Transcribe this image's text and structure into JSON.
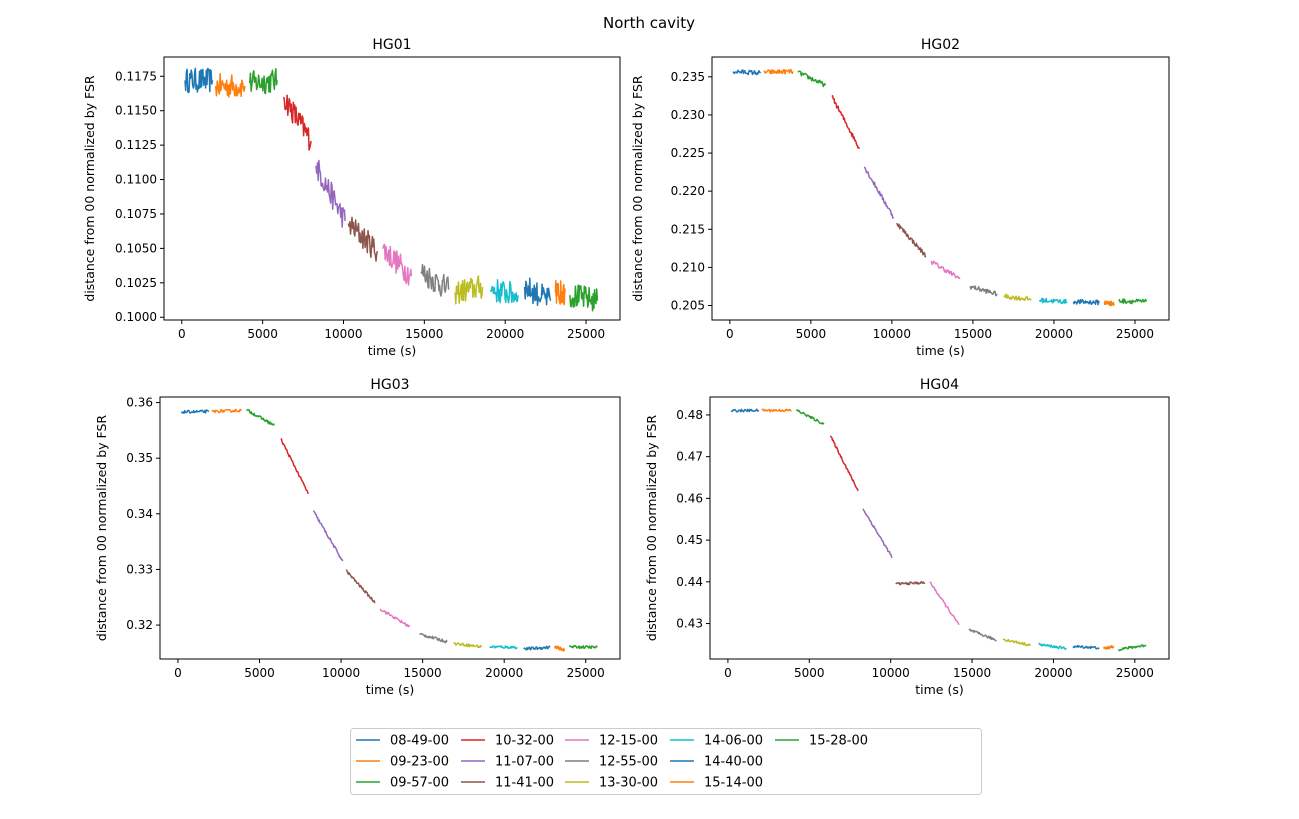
{
  "chart_data": {
    "type": "line",
    "suptitle": "North cavity",
    "legend": {
      "placement": "bottom-center",
      "columns": 5,
      "entries": [
        {
          "label": "08-49-00",
          "color": "#1f77b4"
        },
        {
          "label": "09-23-00",
          "color": "#ff7f0e"
        },
        {
          "label": "09-57-00",
          "color": "#2ca02c"
        },
        {
          "label": "10-32-00",
          "color": "#d62728"
        },
        {
          "label": "11-07-00",
          "color": "#9467bd"
        },
        {
          "label": "11-41-00",
          "color": "#8c564b"
        },
        {
          "label": "12-15-00",
          "color": "#e377c2"
        },
        {
          "label": "12-55-00",
          "color": "#7f7f7f"
        },
        {
          "label": "13-30-00",
          "color": "#bcbd22"
        },
        {
          "label": "14-06-00",
          "color": "#17becf"
        },
        {
          "label": "14-40-00",
          "color": "#1f77b4"
        },
        {
          "label": "15-14-00",
          "color": "#ff7f0e"
        },
        {
          "label": "15-28-00",
          "color": "#2ca02c"
        }
      ]
    },
    "segments_time_ranges": [
      [
        200,
        1900
      ],
      [
        2100,
        3900
      ],
      [
        4200,
        5900
      ],
      [
        6300,
        8000
      ],
      [
        8300,
        10100
      ],
      [
        10300,
        12100
      ],
      [
        12400,
        14200
      ],
      [
        14800,
        16500
      ],
      [
        16900,
        18600
      ],
      [
        19100,
        20800
      ],
      [
        21200,
        22800
      ],
      [
        23100,
        23700
      ],
      [
        24000,
        25700
      ]
    ],
    "subplots": [
      {
        "title": "HG01",
        "xlabel": "time (s)",
        "ylabel": "distance from 00 normalized by FSR",
        "xlim": [
          -1100,
          27100
        ],
        "ylim": [
          0.0998,
          0.1189
        ],
        "xticks": [
          "0",
          "5000",
          "10000",
          "15000",
          "20000",
          "25000"
        ],
        "yticks": [
          "0.1000",
          "0.1025",
          "0.1050",
          "0.1075",
          "0.1100",
          "0.1125",
          "0.1150",
          "0.1175"
        ],
        "noise": 0.0009,
        "segments": [
          {
            "start": 0.1172,
            "end": 0.1172
          },
          {
            "start": 0.1168,
            "end": 0.1168
          },
          {
            "start": 0.117,
            "end": 0.1172
          },
          {
            "start": 0.116,
            "end": 0.1128
          },
          {
            "start": 0.111,
            "end": 0.107
          },
          {
            "start": 0.1068,
            "end": 0.1048
          },
          {
            "start": 0.105,
            "end": 0.103
          },
          {
            "start": 0.1033,
            "end": 0.102
          },
          {
            "start": 0.1018,
            "end": 0.1022
          },
          {
            "start": 0.102,
            "end": 0.1016
          },
          {
            "start": 0.1022,
            "end": 0.1012
          },
          {
            "start": 0.1018,
            "end": 0.1018
          },
          {
            "start": 0.1016,
            "end": 0.1012
          }
        ]
      },
      {
        "title": "HG02",
        "xlabel": "time (s)",
        "ylabel": "distance from 00 normalized by FSR",
        "xlim": [
          -1100,
          27100
        ],
        "ylim": [
          0.2031,
          0.2376
        ],
        "xticks": [
          "0",
          "5000",
          "10000",
          "15000",
          "20000",
          "25000"
        ],
        "yticks": [
          "0.205",
          "0.210",
          "0.215",
          "0.220",
          "0.225",
          "0.230",
          "0.235"
        ],
        "noise": 0.0003,
        "segments": [
          {
            "start": 0.2357,
            "end": 0.2355
          },
          {
            "start": 0.2356,
            "end": 0.2357
          },
          {
            "start": 0.2356,
            "end": 0.2339
          },
          {
            "start": 0.2324,
            "end": 0.2256
          },
          {
            "start": 0.2232,
            "end": 0.2166
          },
          {
            "start": 0.2158,
            "end": 0.2115
          },
          {
            "start": 0.2108,
            "end": 0.2085
          },
          {
            "start": 0.2075,
            "end": 0.2065
          },
          {
            "start": 0.2062,
            "end": 0.2058
          },
          {
            "start": 0.2057,
            "end": 0.2055
          },
          {
            "start": 0.2055,
            "end": 0.2054
          },
          {
            "start": 0.2054,
            "end": 0.2052
          },
          {
            "start": 0.2056,
            "end": 0.2055
          }
        ]
      },
      {
        "title": "HG03",
        "xlabel": "time (s)",
        "ylabel": "distance from 00 normalized by FSR",
        "xlim": [
          -1100,
          27100
        ],
        "ylim": [
          0.3139,
          0.361
        ],
        "xticks": [
          "0",
          "5000",
          "10000",
          "15000",
          "20000",
          "25000"
        ],
        "yticks": [
          "0.32",
          "0.33",
          "0.34",
          "0.35",
          "0.36"
        ],
        "noise": 0.00025,
        "segments": [
          {
            "start": 0.3583,
            "end": 0.3584
          },
          {
            "start": 0.3584,
            "end": 0.3586
          },
          {
            "start": 0.3587,
            "end": 0.3559
          },
          {
            "start": 0.3535,
            "end": 0.3436
          },
          {
            "start": 0.3405,
            "end": 0.3315
          },
          {
            "start": 0.3298,
            "end": 0.324
          },
          {
            "start": 0.3229,
            "end": 0.3197
          },
          {
            "start": 0.3184,
            "end": 0.317
          },
          {
            "start": 0.3167,
            "end": 0.3161
          },
          {
            "start": 0.3161,
            "end": 0.316
          },
          {
            "start": 0.3157,
            "end": 0.316
          },
          {
            "start": 0.3161,
            "end": 0.3155
          },
          {
            "start": 0.3161,
            "end": 0.316
          }
        ]
      },
      {
        "title": "HG04",
        "xlabel": "time (s)",
        "ylabel": "distance from 00 normalized by FSR",
        "xlim": [
          -1100,
          27100
        ],
        "ylim": [
          0.4215,
          0.4843
        ],
        "xticks": [
          "0",
          "5000",
          "10000",
          "15000",
          "20000",
          "25000"
        ],
        "yticks": [
          "0.43",
          "0.44",
          "0.45",
          "0.46",
          "0.47",
          "0.48"
        ],
        "noise": 0.0003,
        "segments": [
          {
            "start": 0.481,
            "end": 0.4811
          },
          {
            "start": 0.4811,
            "end": 0.4811
          },
          {
            "start": 0.4812,
            "end": 0.4778
          },
          {
            "start": 0.475,
            "end": 0.4618
          },
          {
            "start": 0.4575,
            "end": 0.4458
          },
          {
            "start": 0.4395,
            "end": 0.4398
          },
          {
            "start": 0.44,
            "end": 0.4297
          },
          {
            "start": 0.4285,
            "end": 0.426
          },
          {
            "start": 0.4262,
            "end": 0.4248
          },
          {
            "start": 0.425,
            "end": 0.424
          },
          {
            "start": 0.4245,
            "end": 0.4242
          },
          {
            "start": 0.424,
            "end": 0.4245
          },
          {
            "start": 0.4238,
            "end": 0.4248
          }
        ]
      }
    ]
  }
}
